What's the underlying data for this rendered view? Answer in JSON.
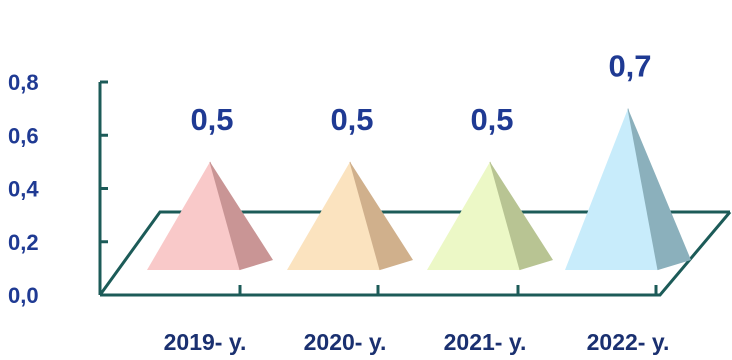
{
  "chart_data": {
    "type": "bar",
    "style": "3d-pyramid",
    "categories": [
      "2019- y.",
      "2020- y.",
      "2021- y.",
      "2022- y."
    ],
    "values": [
      0.5,
      0.5,
      0.5,
      0.7
    ],
    "data_labels": [
      "0,5",
      "0,5",
      "0,5",
      "0,7"
    ],
    "ytick_labels": [
      "0,0",
      "0,2",
      "0,4",
      "0,6",
      "0,8"
    ],
    "ytick_values": [
      0.0,
      0.2,
      0.4,
      0.6,
      0.8
    ],
    "ylim": [
      0,
      0.8
    ],
    "grid": false,
    "legend": "none",
    "colors": {
      "pyramids": [
        {
          "left": "#f9c9c9",
          "right": "#c99595"
        },
        {
          "left": "#fbe3bf",
          "right": "#d0b08c"
        },
        {
          "left": "#ecf8c6",
          "right": "#b8c493"
        },
        {
          "left": "#c8ecfb",
          "right": "#8bb0bc"
        }
      ],
      "axis": "#1c5b58",
      "tick_text": "#1f3a93",
      "category_text": "#1a3070"
    }
  }
}
